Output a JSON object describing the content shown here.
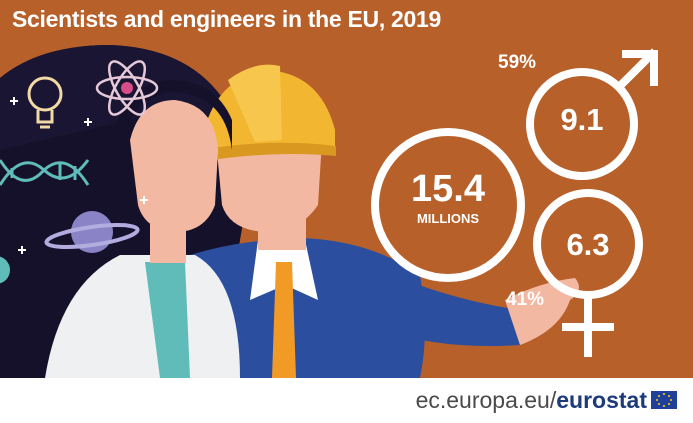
{
  "title": "Scientists and engineers in the EU, 2019",
  "total": {
    "value": "15.4",
    "unit": "MILLIONS"
  },
  "men": {
    "value": "9.1",
    "share": "59%",
    "symbol": "male-symbol-icon"
  },
  "women": {
    "value": "6.3",
    "share": "41%",
    "symbol": "female-symbol-icon"
  },
  "footer": {
    "domain": "ec.europa.eu/",
    "brand": "eurostat"
  },
  "colors": {
    "background": "#b8602a",
    "text": "#ffffff",
    "brand": "#1d3a7a",
    "helmet": "#f2b630",
    "suit": "#2b4f9e",
    "hair": "#15112a"
  }
}
